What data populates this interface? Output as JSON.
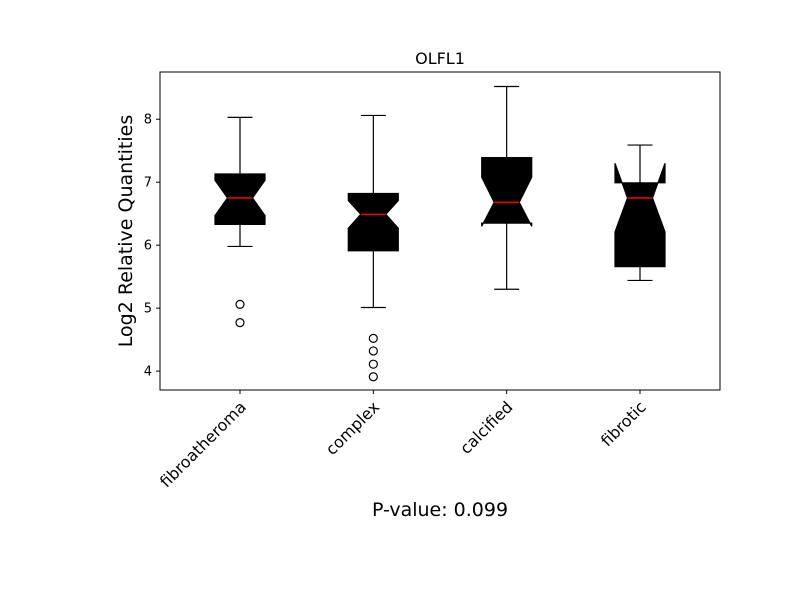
{
  "chart_data": {
    "type": "boxplot",
    "title": "OLFL1",
    "ylabel": "Log2 Relative Quantities",
    "xlabel": "",
    "annotation": "P-value: 0.099",
    "ylim": [
      3.7,
      8.75
    ],
    "yticks": [
      4,
      5,
      6,
      7,
      8
    ],
    "notched": true,
    "box_color": "#000000",
    "median_color": "#ff0000",
    "categories": [
      "fibroatheroma",
      "complex",
      "calcified",
      "fibrotic"
    ],
    "boxes": [
      {
        "whisker_low": 5.98,
        "q1": 6.33,
        "median": 6.75,
        "q3": 7.13,
        "whisker_high": 8.03,
        "notch_low": 6.47,
        "notch_high": 7.03,
        "outliers": [
          5.06,
          4.77
        ]
      },
      {
        "whisker_low": 5.01,
        "q1": 5.91,
        "median": 6.49,
        "q3": 6.82,
        "whisker_high": 8.06,
        "notch_low": 6.27,
        "notch_high": 6.71,
        "outliers": [
          4.52,
          4.32,
          4.11,
          3.91
        ]
      },
      {
        "whisker_low": 5.3,
        "q1": 6.35,
        "median": 6.68,
        "q3": 7.39,
        "whisker_high": 8.52,
        "notch_low": 6.3,
        "notch_high": 7.08,
        "outliers": []
      },
      {
        "whisker_low": 5.44,
        "q1": 5.66,
        "median": 6.75,
        "q3": 6.99,
        "whisker_high": 7.59,
        "notch_low": 6.21,
        "notch_high": 7.3,
        "outliers": []
      }
    ]
  }
}
